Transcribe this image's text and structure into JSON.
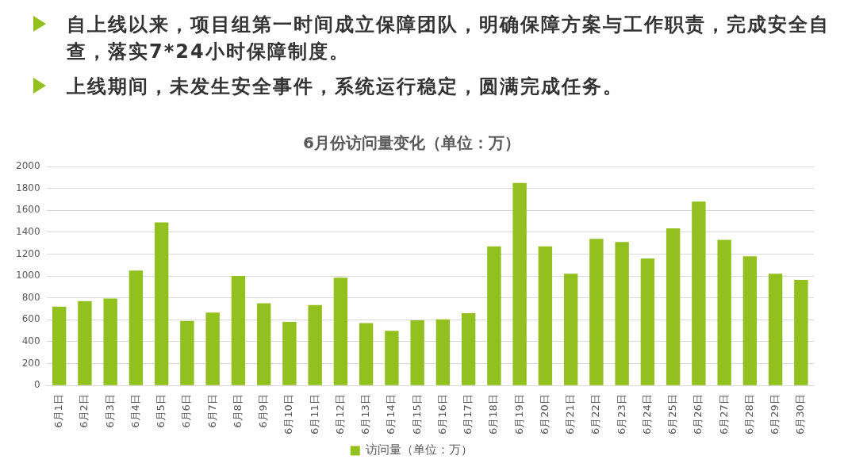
{
  "chart_data": {
    "type": "bar",
    "title": "6月份访问量变化（单位：万）",
    "annotations": [
      "自上线以来，项目组第一时间成立保障团队，明确保障方案与工作职责，完成安全自查，落实7*24小时保障制度。",
      "上线期间，未发生安全事件，系统运行稳定，圆满完成任务。"
    ],
    "categories": [
      "6月1日",
      "6月2日",
      "6月3日",
      "6月4日",
      "6月5日",
      "6月6日",
      "6月7日",
      "6月8日",
      "6月9日",
      "6月10日",
      "6月11日",
      "6月12日",
      "6月13日",
      "6月14日",
      "6月15日",
      "6月16日",
      "6月17日",
      "6月18日",
      "6月19日",
      "6月20日",
      "6月21日",
      "6月22日",
      "6月23日",
      "6月24日",
      "6月25日",
      "6月26日",
      "6月27日",
      "6月28日",
      "6月29日",
      "6月30日"
    ],
    "series": [
      {
        "name": "访问量（单位：万）",
        "color": "#92c01f",
        "values": [
          720,
          770,
          795,
          1050,
          1490,
          590,
          665,
          1000,
          750,
          580,
          735,
          985,
          570,
          500,
          595,
          605,
          660,
          1270,
          1850,
          1270,
          1020,
          1340,
          1310,
          1160,
          1435,
          1680,
          1330,
          1180,
          1020,
          965
        ]
      }
    ],
    "ylim": [
      0,
      2000
    ],
    "yticks": [
      0,
      200,
      400,
      600,
      800,
      1000,
      1200,
      1400,
      1600,
      1800,
      2000
    ],
    "grid": "y",
    "legend": "bottom"
  }
}
